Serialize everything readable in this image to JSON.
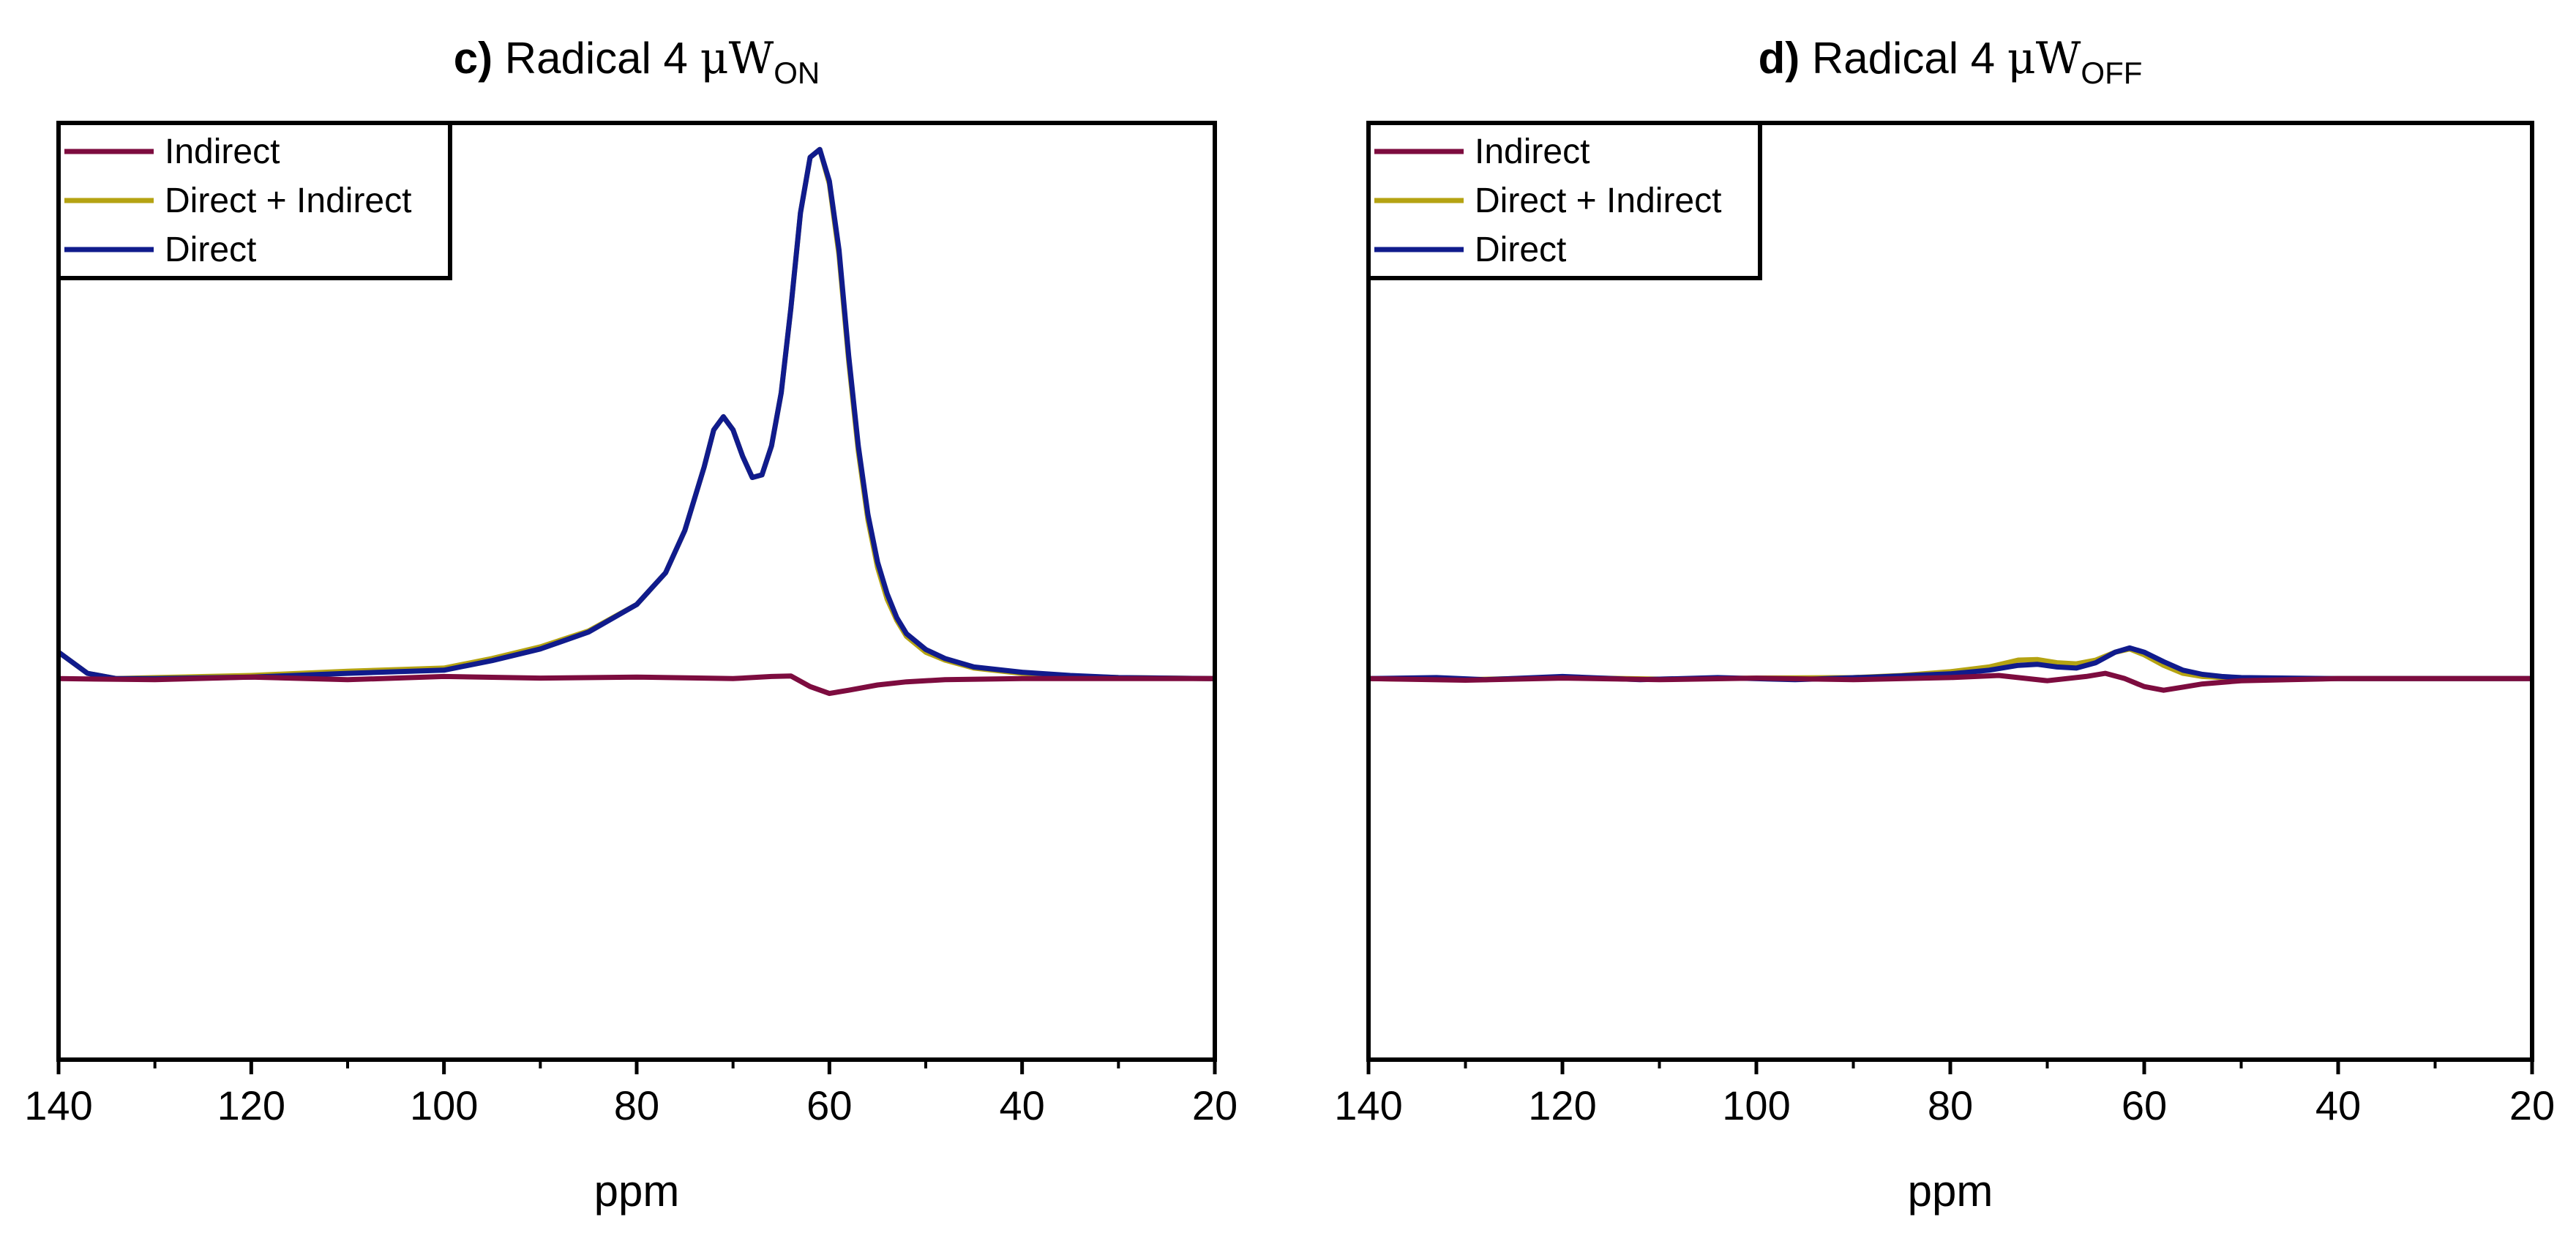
{
  "chart_data": [
    {
      "type": "line",
      "panel_letter": "c)",
      "title_text": "Radical 4",
      "title_symbol": "μW",
      "title_subscript": "ON",
      "xlabel": "ppm",
      "ylabel": "",
      "xlim": [
        140,
        20
      ],
      "ylim": [
        -0.72,
        1.05
      ],
      "x_ticks": [
        140,
        120,
        100,
        80,
        60,
        40,
        20
      ],
      "x_tick_labels": [
        "140",
        "120",
        "100",
        "80",
        "60",
        "40",
        "20"
      ],
      "legend_position": "top-left",
      "series": [
        {
          "name": "Indirect",
          "color": "#7d0c3f",
          "x": [
            140,
            130,
            120,
            110,
            100,
            90,
            80,
            70,
            66,
            64,
            62,
            60,
            58,
            55,
            52,
            48,
            40,
            30,
            20
          ],
          "y": [
            0.0,
            -0.002,
            0.003,
            -0.002,
            0.004,
            0.001,
            0.003,
            0.0,
            0.004,
            0.005,
            -0.015,
            -0.028,
            -0.022,
            -0.012,
            -0.006,
            -0.002,
            0.0,
            0.0,
            0.0
          ]
        },
        {
          "name": "Direct + Indirect",
          "color": "#b5a312",
          "x": [
            140,
            137,
            134,
            130,
            120,
            110,
            100,
            95,
            90,
            85,
            80,
            77,
            75,
            73,
            72,
            71,
            70,
            69,
            68,
            67,
            66,
            65,
            64,
            63,
            62,
            61,
            60,
            59,
            58,
            57,
            56,
            55,
            54,
            53,
            52,
            50,
            48,
            45,
            40,
            35,
            30,
            20
          ],
          "y": [
            0.05,
            0.01,
            0.0,
            0.002,
            0.006,
            0.014,
            0.02,
            0.038,
            0.06,
            0.09,
            0.14,
            0.2,
            0.28,
            0.4,
            0.47,
            0.495,
            0.47,
            0.42,
            0.38,
            0.385,
            0.44,
            0.54,
            0.7,
            0.88,
            0.985,
            1.0,
            0.935,
            0.8,
            0.6,
            0.43,
            0.3,
            0.21,
            0.15,
            0.11,
            0.08,
            0.05,
            0.035,
            0.02,
            0.01,
            0.005,
            0.002,
            0.0
          ]
        },
        {
          "name": "Direct",
          "color": "#101b8c",
          "x": [
            140,
            137,
            134,
            130,
            120,
            110,
            100,
            95,
            90,
            85,
            80,
            77,
            75,
            73,
            72,
            71,
            70,
            69,
            68,
            67,
            66,
            65,
            64,
            63,
            62,
            61,
            60,
            59,
            58,
            57,
            56,
            55,
            54,
            53,
            52,
            50,
            48,
            45,
            40,
            35,
            30,
            20
          ],
          "y": [
            0.05,
            0.01,
            0.0,
            0.0,
            0.003,
            0.01,
            0.016,
            0.034,
            0.056,
            0.088,
            0.14,
            0.2,
            0.28,
            0.4,
            0.47,
            0.495,
            0.47,
            0.42,
            0.38,
            0.385,
            0.44,
            0.54,
            0.7,
            0.88,
            0.985,
            1.0,
            0.94,
            0.81,
            0.61,
            0.44,
            0.31,
            0.22,
            0.16,
            0.115,
            0.085,
            0.055,
            0.038,
            0.022,
            0.012,
            0.006,
            0.002,
            0.0
          ]
        }
      ]
    },
    {
      "type": "line",
      "panel_letter": "d)",
      "title_text": "Radical 4",
      "title_symbol": "μW",
      "title_subscript": "OFF",
      "xlabel": "ppm",
      "ylabel": "",
      "xlim": [
        140,
        20
      ],
      "ylim": [
        -0.72,
        1.05
      ],
      "x_ticks": [
        140,
        120,
        100,
        80,
        60,
        40,
        20
      ],
      "x_tick_labels": [
        "140",
        "120",
        "100",
        "80",
        "60",
        "40",
        "20"
      ],
      "legend_position": "top-left",
      "series": [
        {
          "name": "Indirect",
          "color": "#7d0c3f",
          "x": [
            140,
            130,
            120,
            110,
            100,
            90,
            80,
            75,
            70,
            66,
            64,
            62,
            60,
            58,
            56,
            54,
            50,
            45,
            40,
            30,
            20
          ],
          "y": [
            0.0,
            -0.003,
            0.001,
            -0.002,
            0.001,
            -0.002,
            0.002,
            0.006,
            -0.004,
            0.004,
            0.01,
            0.0,
            -0.015,
            -0.022,
            -0.016,
            -0.01,
            -0.004,
            -0.002,
            0.0,
            0.0,
            0.0
          ]
        },
        {
          "name": "Direct + Indirect",
          "color": "#b5a312",
          "x": [
            140,
            130,
            120,
            110,
            100,
            90,
            85,
            80,
            76,
            73,
            71,
            69,
            67,
            65,
            63,
            61.5,
            60,
            58,
            56,
            54,
            52,
            50,
            45,
            40,
            30,
            20
          ],
          "y": [
            0.0,
            -0.002,
            0.002,
            -0.001,
            0.001,
            0.002,
            0.006,
            0.013,
            0.022,
            0.035,
            0.036,
            0.03,
            0.028,
            0.035,
            0.05,
            0.056,
            0.045,
            0.025,
            0.01,
            0.004,
            0.002,
            0.001,
            0.0,
            0.0,
            0.0,
            0.0
          ]
        },
        {
          "name": "Direct",
          "color": "#101b8c",
          "x": [
            140,
            133,
            128,
            120,
            112,
            104,
            96,
            88,
            80,
            76,
            73,
            71,
            69,
            67,
            65,
            63,
            61.5,
            60,
            58,
            56,
            54,
            52,
            50,
            45,
            40,
            30,
            20
          ],
          "y": [
            0.0,
            0.002,
            -0.002,
            0.004,
            -0.002,
            0.002,
            -0.002,
            0.003,
            0.009,
            0.016,
            0.025,
            0.027,
            0.022,
            0.02,
            0.03,
            0.05,
            0.058,
            0.05,
            0.032,
            0.016,
            0.008,
            0.004,
            0.002,
            0.001,
            0.0,
            0.0,
            0.0
          ]
        }
      ]
    }
  ]
}
